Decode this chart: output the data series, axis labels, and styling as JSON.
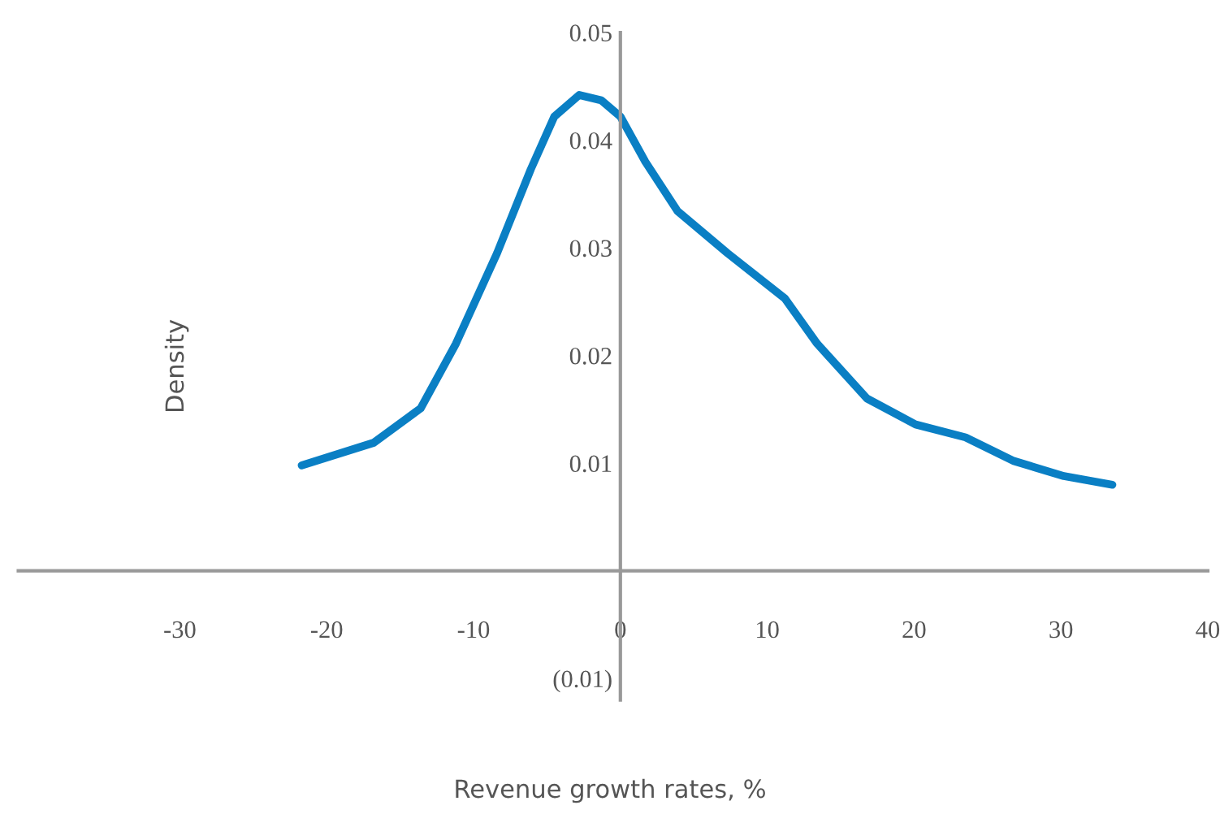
{
  "chart_data": {
    "type": "line",
    "xlabel": "Revenue growth rates, %",
    "ylabel": "Density",
    "x": [
      -21.7,
      -16.8,
      -13.6,
      -11.2,
      -8.4,
      -6.1,
      -4.5,
      -2.8,
      -1.3,
      0,
      1.7,
      3.9,
      7.3,
      11.2,
      13.4,
      16.8,
      20.1,
      23.5,
      26.8,
      30.2,
      33.5
    ],
    "series": [
      {
        "color": "#0a7fc4",
        "values": [
          0.0098,
          0.0119,
          0.0151,
          0.0211,
          0.0295,
          0.0373,
          0.0422,
          0.0442,
          0.0437,
          0.0422,
          0.038,
          0.0334,
          0.0295,
          0.0253,
          0.0211,
          0.016,
          0.0136,
          0.0124,
          0.0102,
          0.0088,
          0.008
        ]
      }
    ],
    "xlim": [
      -41,
      40
    ],
    "xticks": [
      -30,
      -20,
      -10,
      0,
      10,
      20,
      30,
      40
    ],
    "ylim": [
      -0.012,
      0.05
    ],
    "yticks": [
      {
        "value": -0.01,
        "label": "(0.01)"
      },
      0.01,
      0.02,
      0.03,
      0.04,
      0.05
    ],
    "grid": false,
    "legend": false,
    "marker": "none",
    "line_style": "solid"
  }
}
